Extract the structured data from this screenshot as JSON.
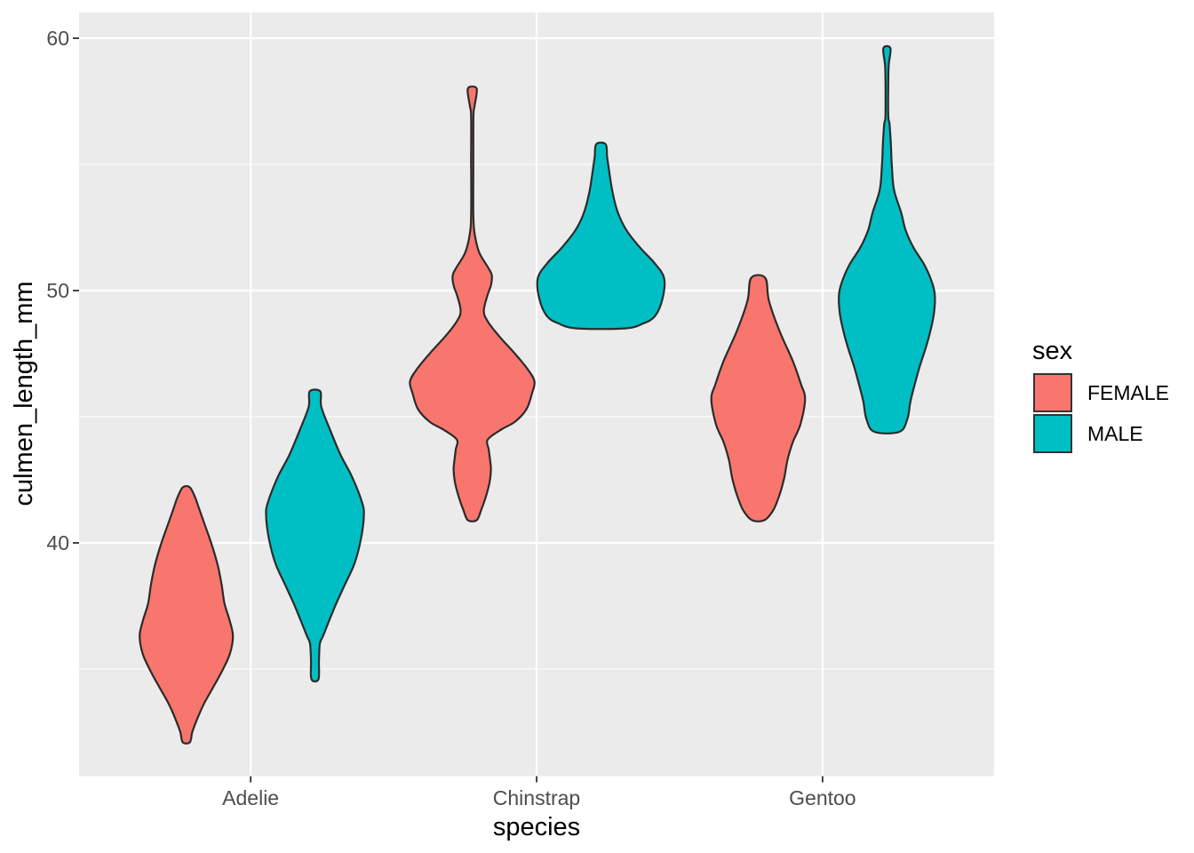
{
  "chart_data": {
    "type": "violin",
    "title": "",
    "xlabel": "species",
    "ylabel": "culmen_length_mm",
    "categories": [
      "Adelie",
      "Chinstrap",
      "Gentoo"
    ],
    "y_axis": {
      "breaks": [
        60,
        50,
        40
      ],
      "labels": [
        "60",
        "50",
        "40"
      ],
      "minor_breaks": [
        55,
        45,
        35
      ],
      "range": [
        30.8,
        61.0
      ],
      "grid": "on"
    },
    "legend": {
      "title": "sex",
      "position": "right",
      "entries": [
        {
          "label": "FEMALE",
          "color": "#F8766D"
        },
        {
          "label": "MALE",
          "color": "#00BFC4"
        }
      ]
    },
    "violins": [
      {
        "species": "Adelie",
        "sex": "FEMALE",
        "min": 32.1,
        "max": 42.2,
        "profile": [
          [
            42.2,
            0.055
          ],
          [
            41.8,
            0.138
          ],
          [
            41.4,
            0.193
          ],
          [
            40.8,
            0.276
          ],
          [
            40.0,
            0.387
          ],
          [
            39.1,
            0.49
          ],
          [
            38.3,
            0.552
          ],
          [
            37.6,
            0.594
          ],
          [
            36.9,
            0.677
          ],
          [
            36.3,
            0.725
          ],
          [
            35.6,
            0.677
          ],
          [
            34.9,
            0.552
          ],
          [
            34.2,
            0.4
          ],
          [
            33.6,
            0.269
          ],
          [
            33.0,
            0.166
          ],
          [
            32.5,
            0.093
          ],
          [
            32.1,
            0.055
          ]
        ]
      },
      {
        "species": "Adelie",
        "sex": "MALE",
        "min": 34.6,
        "max": 46.0,
        "profile": [
          [
            46.0,
            0.083
          ],
          [
            45.4,
            0.097
          ],
          [
            44.5,
            0.231
          ],
          [
            43.5,
            0.396
          ],
          [
            42.6,
            0.58
          ],
          [
            41.6,
            0.732
          ],
          [
            41.1,
            0.76
          ],
          [
            40.2,
            0.718
          ],
          [
            39.2,
            0.617
          ],
          [
            38.3,
            0.456
          ],
          [
            37.6,
            0.331
          ],
          [
            36.9,
            0.217
          ],
          [
            36.3,
            0.124
          ],
          [
            36.0,
            0.076
          ],
          [
            35.3,
            0.062
          ],
          [
            34.6,
            0.055
          ]
        ]
      },
      {
        "species": "Chinstrap",
        "sex": "FEMALE",
        "min": 40.9,
        "max": 58.0,
        "profile": [
          [
            58.0,
            0.069
          ],
          [
            57.3,
            0.035
          ],
          [
            56.9,
            0.018
          ],
          [
            55.0,
            0.017
          ],
          [
            53.0,
            0.017
          ],
          [
            52.2,
            0.041
          ],
          [
            51.5,
            0.11
          ],
          [
            50.9,
            0.249
          ],
          [
            50.6,
            0.304
          ],
          [
            50.2,
            0.29
          ],
          [
            49.8,
            0.235
          ],
          [
            49.2,
            0.18
          ],
          [
            48.8,
            0.235
          ],
          [
            48.2,
            0.414
          ],
          [
            47.5,
            0.663
          ],
          [
            46.9,
            0.856
          ],
          [
            46.4,
            0.967
          ],
          [
            45.9,
            0.925
          ],
          [
            45.3,
            0.843
          ],
          [
            44.8,
            0.663
          ],
          [
            44.5,
            0.456
          ],
          [
            44.1,
            0.242
          ],
          [
            43.7,
            0.256
          ],
          [
            43.3,
            0.276
          ],
          [
            42.9,
            0.29
          ],
          [
            42.4,
            0.269
          ],
          [
            41.8,
            0.207
          ],
          [
            41.3,
            0.138
          ],
          [
            40.9,
            0.069
          ]
        ]
      },
      {
        "species": "Chinstrap",
        "sex": "MALE",
        "min": 48.5,
        "max": 55.8,
        "profile": [
          [
            55.8,
            0.073
          ],
          [
            55.3,
            0.097
          ],
          [
            54.8,
            0.124
          ],
          [
            53.9,
            0.18
          ],
          [
            53.1,
            0.262
          ],
          [
            52.4,
            0.394
          ],
          [
            51.7,
            0.608
          ],
          [
            51.1,
            0.829
          ],
          [
            50.5,
            0.981
          ],
          [
            49.7,
            0.96
          ],
          [
            49.0,
            0.843
          ],
          [
            48.7,
            0.663
          ],
          [
            48.5,
            0.373
          ]
        ]
      },
      {
        "species": "Gentoo",
        "sex": "FEMALE",
        "min": 40.9,
        "max": 50.5,
        "profile": [
          [
            50.5,
            0.11
          ],
          [
            49.6,
            0.166
          ],
          [
            48.4,
            0.331
          ],
          [
            47.2,
            0.539
          ],
          [
            46.3,
            0.663
          ],
          [
            45.7,
            0.728
          ],
          [
            44.7,
            0.656
          ],
          [
            44.0,
            0.539
          ],
          [
            43.3,
            0.456
          ],
          [
            42.6,
            0.407
          ],
          [
            41.9,
            0.331
          ],
          [
            41.3,
            0.235
          ],
          [
            40.9,
            0.097
          ]
        ]
      },
      {
        "species": "Gentoo",
        "sex": "MALE",
        "min": 44.4,
        "max": 59.6,
        "profile": [
          [
            59.6,
            0.055
          ],
          [
            58.9,
            0.028
          ],
          [
            58.0,
            0.021
          ],
          [
            56.9,
            0.022
          ],
          [
            56.6,
            0.041
          ],
          [
            55.8,
            0.062
          ],
          [
            55.0,
            0.076
          ],
          [
            54.0,
            0.11
          ],
          [
            53.1,
            0.221
          ],
          [
            52.4,
            0.29
          ],
          [
            51.7,
            0.414
          ],
          [
            51.0,
            0.587
          ],
          [
            50.3,
            0.704
          ],
          [
            49.8,
            0.746
          ],
          [
            49.1,
            0.732
          ],
          [
            48.4,
            0.677
          ],
          [
            47.7,
            0.601
          ],
          [
            47.0,
            0.511
          ],
          [
            46.3,
            0.435
          ],
          [
            45.6,
            0.366
          ],
          [
            44.9,
            0.318
          ],
          [
            44.4,
            0.193
          ]
        ]
      }
    ]
  },
  "colors": {
    "panel_bg": "#EBEBEB",
    "gridline": "#FFFFFF",
    "violin_outline": "#2B2B2B",
    "axis_tick": "#333333",
    "tick_label": "#4D4D4D",
    "text": "#000000",
    "female": "#F8766D",
    "male": "#00BFC4"
  }
}
